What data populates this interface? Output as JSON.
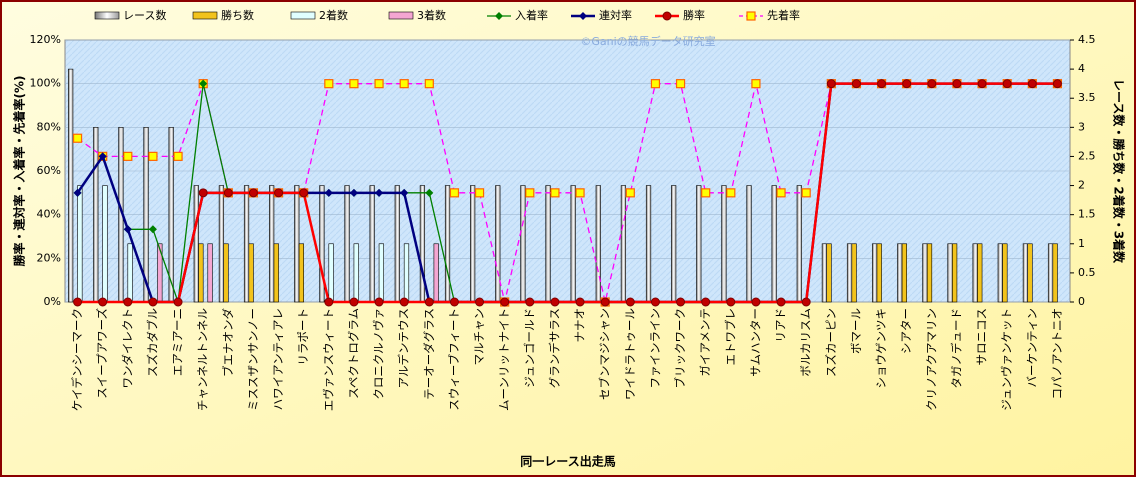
{
  "chart_data": {
    "type": "bar-line",
    "annotation": "©Ganiの競馬データ研究室",
    "x_label": "同一レース出走馬",
    "y_label": "勝率・連対率・入着率・先着率(%)",
    "y2_label": "レース数・勝ち数・2着数・3着数",
    "categories": [
      "ケイデンシーマーク",
      "スイープアワーズ",
      "ワンダイレクト",
      "スズカダブル",
      "エアミアーニ",
      "チャンネルトンネル",
      "ブエナオンダ",
      "ミススザンサンノー",
      "ハワイアンティアレ",
      "リラポート",
      "エヴァンスウィート",
      "スペクトログラム",
      "クロニクルノヴァ",
      "アルデンテウス",
      "テーオーダグラス",
      "スウィーブフィート",
      "マルチャン",
      "ムーンリットナイト",
      "ジュンゴールド",
      "グランデサラス",
      "ナナオ",
      "セブンマジシャン",
      "ワイドラトゥール",
      "ファインライン",
      "ブリックワーク",
      "ガイアメンテ",
      "エトワブレ",
      "サムハンター",
      "リアド",
      "ボルカリスム",
      "スズカーピン",
      "ボマール",
      "ショウゲンツキ",
      "シアター",
      "クリノアクアマリン",
      "タガノデュード",
      "サロニコス",
      "ジュンヴァンケット",
      "バーケンティン",
      "コパノアントニオ"
    ],
    "ylim": [
      0,
      120
    ],
    "yticks": [
      {
        "value": 0,
        "label": "0%"
      },
      {
        "value": 20,
        "label": "20%"
      },
      {
        "value": 40,
        "label": "40%"
      },
      {
        "value": 60,
        "label": "60%"
      },
      {
        "value": 80,
        "label": "80%"
      },
      {
        "value": 100,
        "label": "100%"
      },
      {
        "value": 120,
        "label": "120%"
      }
    ],
    "y2lim": [
      0,
      4.5
    ],
    "y2ticks": [
      0,
      0.5,
      1,
      1.5,
      2,
      2.5,
      3,
      3.5,
      4,
      4.5
    ],
    "series": [
      {
        "name": "レース数",
        "kind": "bar",
        "axis": "y2",
        "color": "#ffffff",
        "values": [
          4,
          3,
          3,
          3,
          3,
          2,
          2,
          2,
          2,
          2,
          2,
          2,
          2,
          2,
          2,
          2,
          2,
          2,
          2,
          2,
          2,
          2,
          2,
          2,
          2,
          2,
          2,
          2,
          2,
          2,
          1,
          1,
          1,
          1,
          1,
          1,
          1,
          1,
          1,
          1
        ]
      },
      {
        "name": "勝ち数",
        "kind": "bar",
        "axis": "y2",
        "color": "#f2c31c",
        "values": [
          0,
          0,
          0,
          0,
          0,
          1,
          1,
          1,
          1,
          1,
          0,
          0,
          0,
          0,
          0,
          0,
          0,
          0,
          0,
          0,
          0,
          0,
          0,
          0,
          0,
          0,
          0,
          0,
          0,
          0,
          1,
          1,
          1,
          1,
          1,
          1,
          1,
          1,
          1,
          1
        ]
      },
      {
        "name": "2着数",
        "kind": "bar",
        "axis": "y2",
        "color": "#e0ffff",
        "values": [
          2,
          2,
          1,
          0,
          0,
          0,
          0,
          0,
          0,
          0,
          1,
          1,
          1,
          1,
          0,
          0,
          0,
          0,
          0,
          0,
          0,
          0,
          0,
          0,
          0,
          0,
          0,
          0,
          0,
          0,
          0,
          0,
          0,
          0,
          0,
          0,
          0,
          0,
          0,
          0
        ]
      },
      {
        "name": "3着数",
        "kind": "bar",
        "axis": "y2",
        "color": "#f4a6d2",
        "values": [
          0,
          0,
          0,
          1,
          0,
          1,
          0,
          0,
          0,
          0,
          0,
          0,
          0,
          0,
          1,
          0,
          0,
          0,
          0,
          0,
          0,
          0,
          0,
          0,
          0,
          0,
          0,
          0,
          0,
          0,
          0,
          0,
          0,
          0,
          0,
          0,
          0,
          0,
          0,
          0
        ]
      },
      {
        "name": "入着率",
        "kind": "line",
        "marker": "diamond",
        "color": "#008000",
        "values": [
          50,
          66.7,
          33.3,
          33.3,
          0,
          100,
          50,
          50,
          50,
          50,
          50,
          50,
          50,
          50,
          50,
          0,
          0,
          0,
          0,
          0,
          0,
          0,
          0,
          0,
          0,
          0,
          0,
          0,
          0,
          0,
          100,
          100,
          100,
          100,
          100,
          100,
          100,
          100,
          100,
          100
        ]
      },
      {
        "name": "連対率",
        "kind": "line",
        "marker": "diamond",
        "color": "#000080",
        "values": [
          50,
          66.7,
          33.3,
          0,
          0,
          50,
          50,
          50,
          50,
          50,
          50,
          50,
          50,
          50,
          0,
          0,
          0,
          0,
          0,
          0,
          0,
          0,
          0,
          0,
          0,
          0,
          0,
          0,
          0,
          0,
          100,
          100,
          100,
          100,
          100,
          100,
          100,
          100,
          100,
          100
        ]
      },
      {
        "name": "勝率",
        "kind": "line",
        "marker": "circle",
        "color": "#ff0000",
        "values": [
          0,
          0,
          0,
          0,
          0,
          50,
          50,
          50,
          50,
          50,
          0,
          0,
          0,
          0,
          0,
          0,
          0,
          0,
          0,
          0,
          0,
          0,
          0,
          0,
          0,
          0,
          0,
          0,
          0,
          0,
          100,
          100,
          100,
          100,
          100,
          100,
          100,
          100,
          100,
          100
        ]
      },
      {
        "name": "先着率",
        "kind": "line",
        "marker": "square",
        "dashed": true,
        "color": "#ff00ff",
        "values": [
          75,
          66.7,
          66.7,
          66.7,
          66.7,
          100,
          50,
          50,
          50,
          50,
          100,
          100,
          100,
          100,
          100,
          50,
          50,
          0,
          50,
          50,
          50,
          0,
          50,
          100,
          100,
          50,
          50,
          100,
          50,
          50,
          100,
          100,
          100,
          100,
          100,
          100,
          100,
          100,
          100,
          100
        ]
      }
    ]
  }
}
